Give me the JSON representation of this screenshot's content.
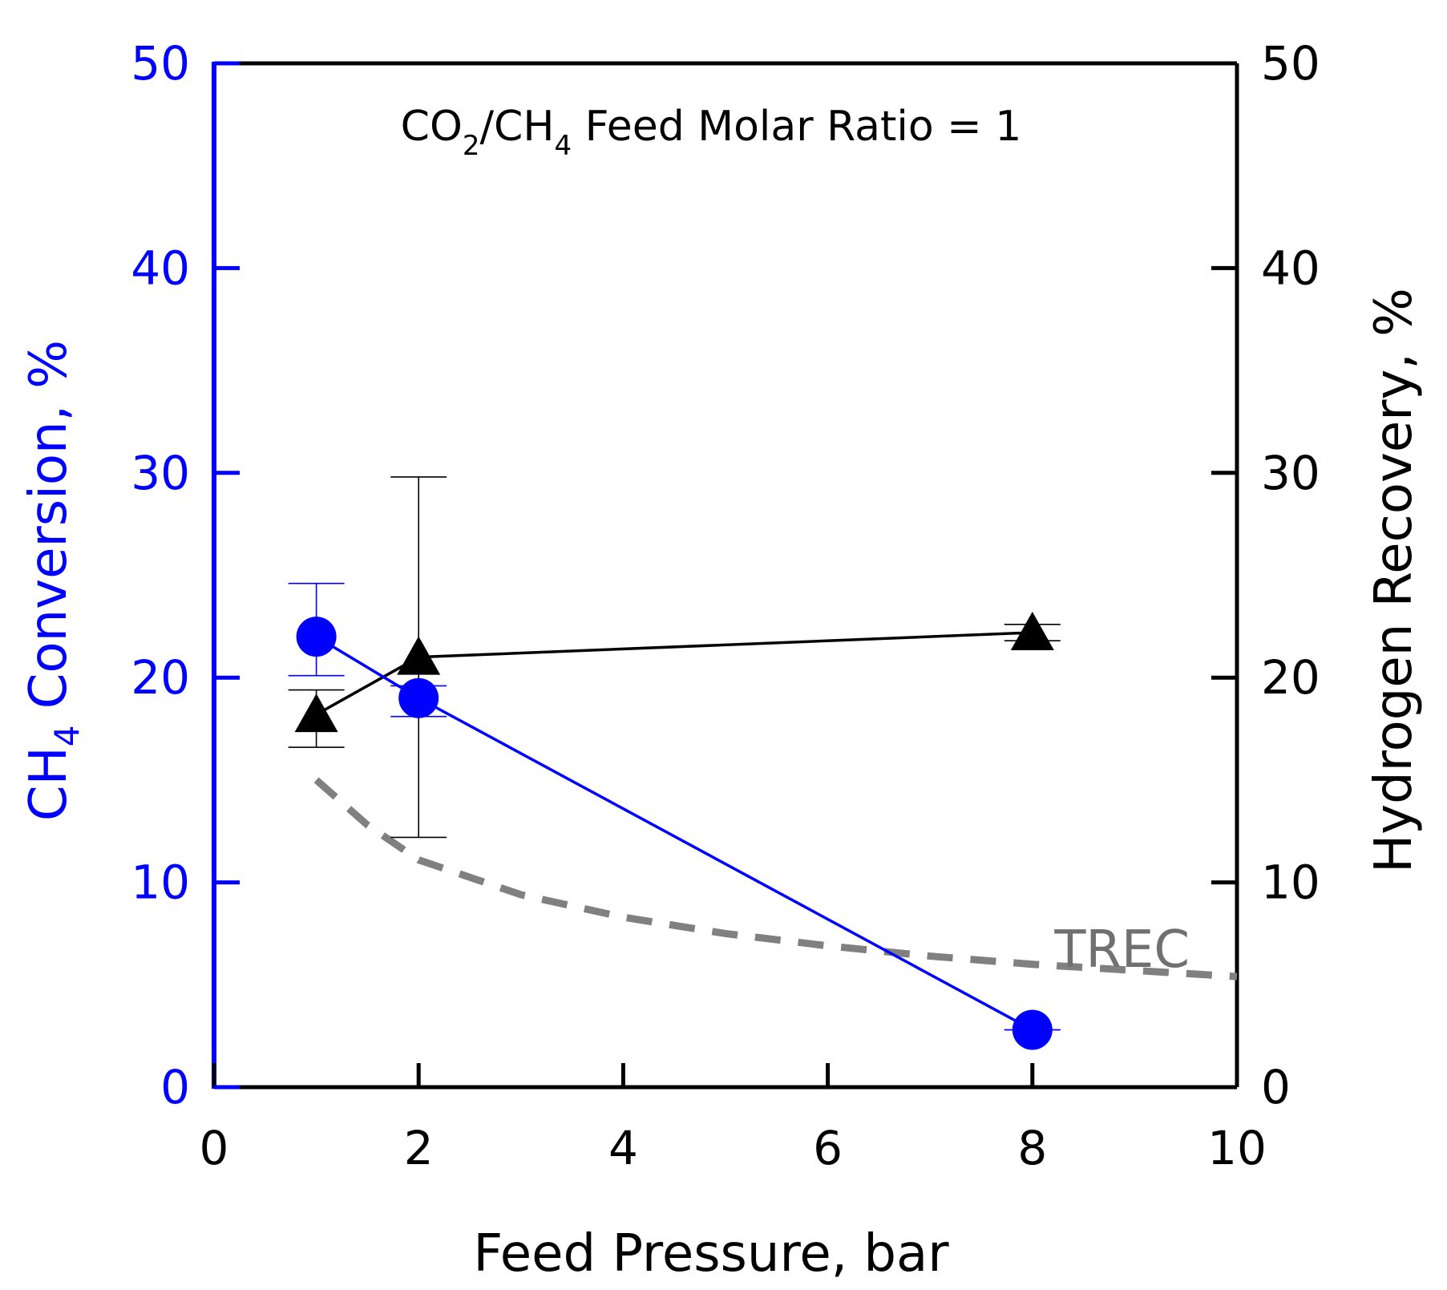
{
  "chart_data": {
    "type": "line",
    "title": "",
    "annotation": {
      "prefix": "CO",
      "sub1": "2",
      "middle": "/CH",
      "sub2": "4",
      "suffix": " Feed Molar Ratio = 1"
    },
    "xlabel": "Feed Pressure, bar",
    "xlim": [
      0,
      10
    ],
    "x_ticks": [
      "0",
      "2",
      "4",
      "6",
      "8",
      "10"
    ],
    "y_left": {
      "label_main": "CH",
      "label_sub": "4",
      "label_rest": " Conversion, %",
      "lim": [
        0,
        50
      ],
      "ticks": [
        "0",
        "10",
        "20",
        "30",
        "40",
        "50"
      ],
      "color": "#0000ff"
    },
    "y_right": {
      "label": "Hydrogen Recovery, %",
      "lim": [
        0,
        50
      ],
      "ticks": [
        "0",
        "10",
        "20",
        "30",
        "40",
        "50"
      ],
      "color": "#000000"
    },
    "series": [
      {
        "axis": "left",
        "marker": "circle",
        "color": "#0000ff",
        "x": [
          1,
          2,
          8
        ],
        "y": [
          22.0,
          19.0,
          2.8
        ],
        "err_low": [
          20.1,
          18.1,
          2.8
        ],
        "err_high": [
          24.6,
          19.6,
          2.8
        ]
      },
      {
        "axis": "right",
        "marker": "triangle",
        "color": "#000000",
        "x": [
          1,
          2,
          8
        ],
        "y": [
          18.2,
          21.0,
          22.2
        ],
        "err_low": [
          16.6,
          12.2,
          21.8
        ],
        "err_high": [
          19.4,
          29.8,
          22.6
        ]
      },
      {
        "axis": "left",
        "style": "dashed",
        "color": "#808080",
        "label": "TREC",
        "x": [
          1,
          1.5,
          2,
          3,
          4,
          5,
          6,
          7,
          8,
          9,
          10
        ],
        "y": [
          15.0,
          12.8,
          11.1,
          9.4,
          8.3,
          7.5,
          6.9,
          6.4,
          6.0,
          5.7,
          5.4
        ]
      }
    ],
    "grid": false,
    "legend": "none"
  }
}
